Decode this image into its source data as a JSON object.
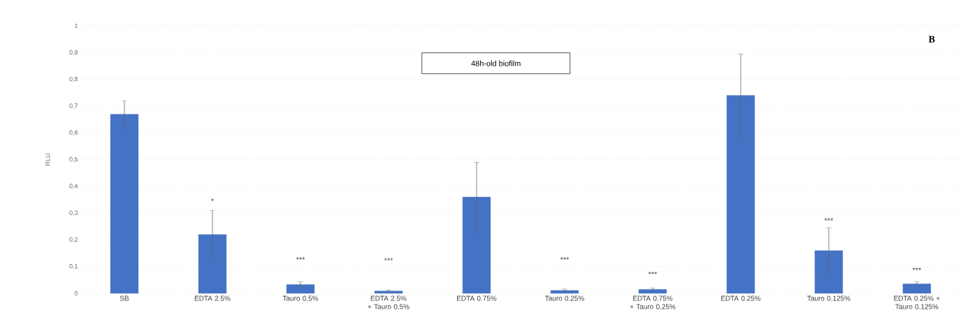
{
  "chart_data": {
    "type": "bar",
    "ylabel": "RLU",
    "categories": [
      "SB",
      "EDTA 2.5%",
      "Tauro 0.5%",
      "EDTA 2.5% + Tauro 0.5%",
      "EDTA 0.75%",
      "Tauro 0.25%",
      "EDTA 0.75% + Tauro 0.25%",
      "EDTA 0.25%",
      "Tauro 0.125%",
      "EDTA 0.25% + Tauro 0.125%"
    ],
    "values": [
      0.67,
      0.22,
      0.033,
      0.009,
      0.36,
      0.011,
      0.015,
      0.74,
      0.16,
      0.036
    ],
    "errors": [
      0.05,
      0.09,
      0.01,
      0.004,
      0.13,
      0.005,
      0.005,
      0.155,
      0.085,
      0.008
    ],
    "color": "#4472c4",
    "ylim": [
      0,
      1
    ],
    "yticks": [
      0,
      {
        "value": 0.1,
        "label": "0,1"
      },
      {
        "value": 0.2,
        "label": "0,2"
      },
      {
        "value": 0.3,
        "label": "0,3"
      },
      {
        "value": 0.4,
        "label": "0,4"
      },
      {
        "value": 0.5,
        "label": "0,5"
      },
      {
        "value": 0.6,
        "label": "0,6"
      },
      {
        "value": 0.7,
        "label": "0,7"
      },
      {
        "value": 0.8,
        "label": "0,8"
      },
      {
        "value": 0.9,
        "label": "0,9"
      },
      1
    ],
    "grid": "y",
    "annotations": [
      "48h-old biofilm",
      "**B**",
      "*",
      "***",
      "***",
      "***",
      "***",
      "***",
      "***"
    ]
  }
}
